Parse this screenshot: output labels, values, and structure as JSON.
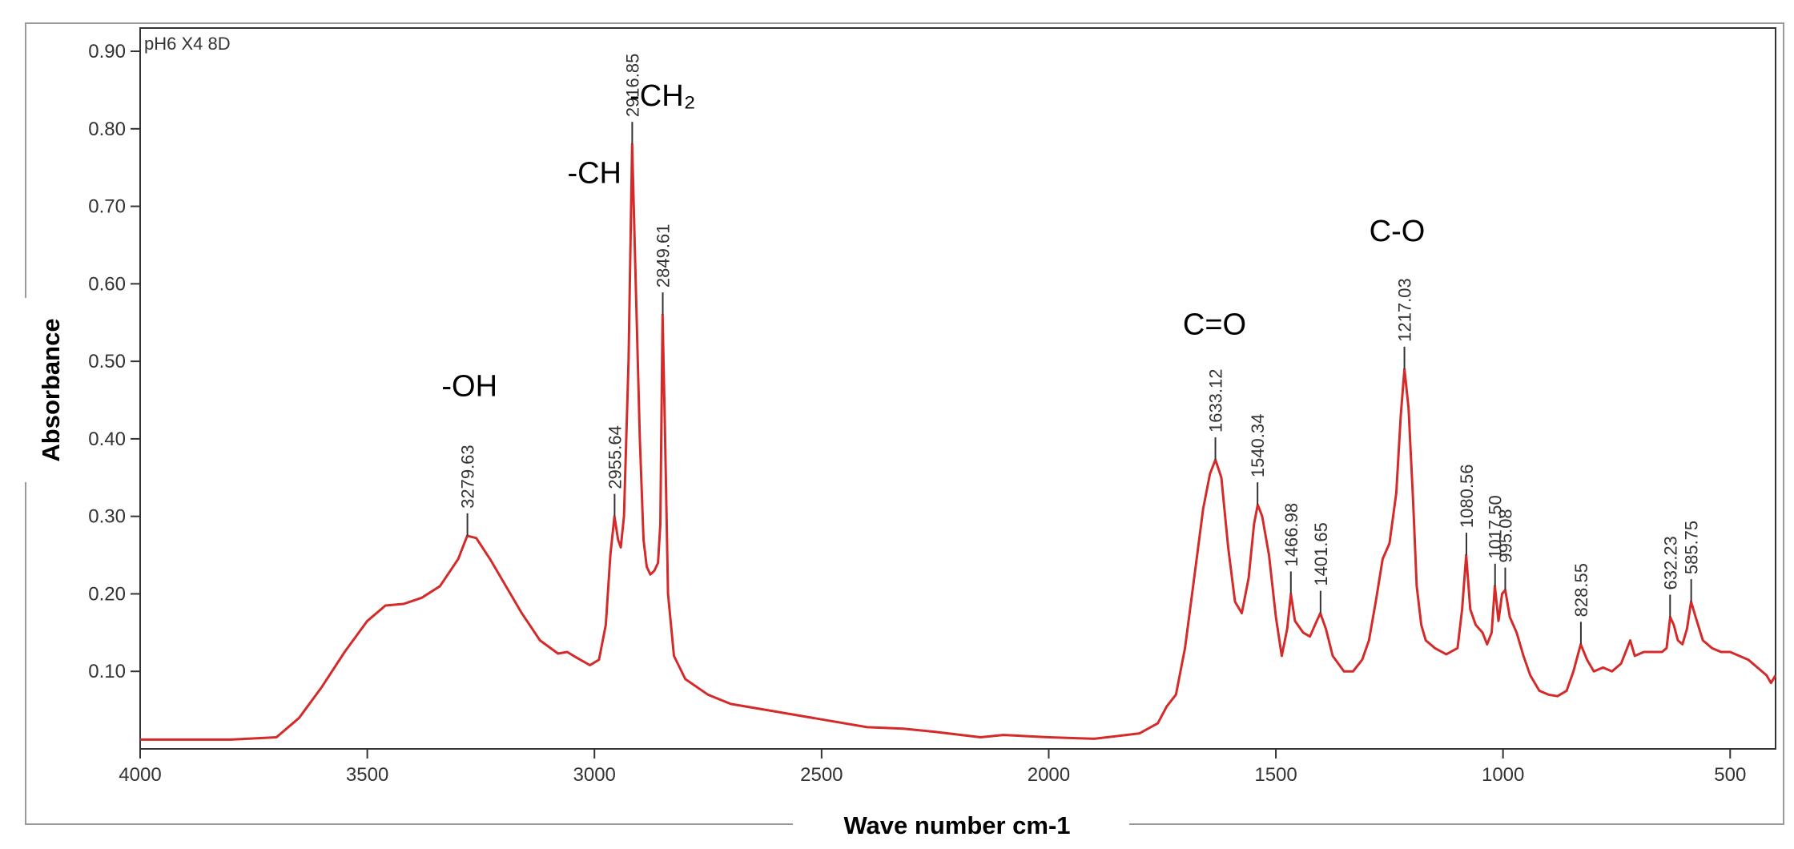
{
  "chart_data": {
    "type": "line",
    "sample_label": "pH6 X4 8D",
    "xlabel": "Wave number cm-1",
    "ylabel": "Absorbance",
    "xlim": [
      4000,
      400
    ],
    "ylim": [
      0,
      0.93
    ],
    "x_ticks": [
      4000,
      3500,
      3000,
      2500,
      2000,
      1500,
      1000,
      500
    ],
    "y_ticks": [
      0.1,
      0.2,
      0.3,
      0.4,
      0.5,
      0.6,
      0.7,
      0.8,
      0.9
    ],
    "y_tick_labels": [
      "0.10",
      "0.20",
      "0.30",
      "0.40",
      "0.50",
      "0.60",
      "0.70",
      "0.80",
      "0.90"
    ],
    "line_color": "#d42a2a",
    "series": [
      {
        "points": [
          [
            4000,
            0.012
          ],
          [
            3800,
            0.012
          ],
          [
            3700,
            0.015
          ],
          [
            3650,
            0.04
          ],
          [
            3600,
            0.08
          ],
          [
            3550,
            0.125
          ],
          [
            3500,
            0.165
          ],
          [
            3460,
            0.185
          ],
          [
            3420,
            0.187
          ],
          [
            3380,
            0.195
          ],
          [
            3340,
            0.21
          ],
          [
            3300,
            0.245
          ],
          [
            3280,
            0.275
          ],
          [
            3260,
            0.272
          ],
          [
            3230,
            0.245
          ],
          [
            3200,
            0.215
          ],
          [
            3160,
            0.175
          ],
          [
            3120,
            0.14
          ],
          [
            3080,
            0.123
          ],
          [
            3060,
            0.125
          ],
          [
            3040,
            0.118
          ],
          [
            3010,
            0.108
          ],
          [
            2990,
            0.115
          ],
          [
            2975,
            0.16
          ],
          [
            2965,
            0.25
          ],
          [
            2956,
            0.3
          ],
          [
            2948,
            0.27
          ],
          [
            2942,
            0.26
          ],
          [
            2935,
            0.3
          ],
          [
            2925,
            0.5
          ],
          [
            2917,
            0.78
          ],
          [
            2910,
            0.62
          ],
          [
            2900,
            0.4
          ],
          [
            2892,
            0.27
          ],
          [
            2885,
            0.235
          ],
          [
            2877,
            0.225
          ],
          [
            2868,
            0.23
          ],
          [
            2860,
            0.24
          ],
          [
            2855,
            0.29
          ],
          [
            2850,
            0.56
          ],
          [
            2845,
            0.42
          ],
          [
            2838,
            0.2
          ],
          [
            2825,
            0.12
          ],
          [
            2800,
            0.09
          ],
          [
            2750,
            0.07
          ],
          [
            2700,
            0.058
          ],
          [
            2600,
            0.048
          ],
          [
            2500,
            0.038
          ],
          [
            2400,
            0.028
          ],
          [
            2320,
            0.026
          ],
          [
            2250,
            0.022
          ],
          [
            2150,
            0.015
          ],
          [
            2100,
            0.018
          ],
          [
            2000,
            0.015
          ],
          [
            1900,
            0.013
          ],
          [
            1800,
            0.02
          ],
          [
            1760,
            0.033
          ],
          [
            1740,
            0.055
          ],
          [
            1720,
            0.07
          ],
          [
            1700,
            0.13
          ],
          [
            1680,
            0.22
          ],
          [
            1660,
            0.31
          ],
          [
            1645,
            0.355
          ],
          [
            1633,
            0.373
          ],
          [
            1620,
            0.35
          ],
          [
            1605,
            0.26
          ],
          [
            1590,
            0.19
          ],
          [
            1575,
            0.175
          ],
          [
            1560,
            0.22
          ],
          [
            1548,
            0.29
          ],
          [
            1540,
            0.315
          ],
          [
            1530,
            0.3
          ],
          [
            1515,
            0.25
          ],
          [
            1500,
            0.17
          ],
          [
            1487,
            0.12
          ],
          [
            1475,
            0.155
          ],
          [
            1467,
            0.2
          ],
          [
            1458,
            0.165
          ],
          [
            1440,
            0.15
          ],
          [
            1425,
            0.145
          ],
          [
            1410,
            0.165
          ],
          [
            1402,
            0.175
          ],
          [
            1390,
            0.155
          ],
          [
            1375,
            0.12
          ],
          [
            1350,
            0.1
          ],
          [
            1330,
            0.1
          ],
          [
            1310,
            0.115
          ],
          [
            1295,
            0.14
          ],
          [
            1280,
            0.19
          ],
          [
            1265,
            0.245
          ],
          [
            1250,
            0.265
          ],
          [
            1235,
            0.33
          ],
          [
            1225,
            0.43
          ],
          [
            1217,
            0.49
          ],
          [
            1208,
            0.44
          ],
          [
            1198,
            0.32
          ],
          [
            1190,
            0.21
          ],
          [
            1180,
            0.16
          ],
          [
            1170,
            0.14
          ],
          [
            1150,
            0.13
          ],
          [
            1125,
            0.122
          ],
          [
            1100,
            0.13
          ],
          [
            1090,
            0.18
          ],
          [
            1081,
            0.25
          ],
          [
            1072,
            0.18
          ],
          [
            1060,
            0.16
          ],
          [
            1045,
            0.15
          ],
          [
            1035,
            0.135
          ],
          [
            1025,
            0.15
          ],
          [
            1018,
            0.21
          ],
          [
            1010,
            0.165
          ],
          [
            1002,
            0.2
          ],
          [
            995,
            0.205
          ],
          [
            985,
            0.17
          ],
          [
            970,
            0.15
          ],
          [
            955,
            0.12
          ],
          [
            940,
            0.095
          ],
          [
            920,
            0.075
          ],
          [
            900,
            0.07
          ],
          [
            880,
            0.068
          ],
          [
            860,
            0.075
          ],
          [
            845,
            0.1
          ],
          [
            829,
            0.135
          ],
          [
            815,
            0.115
          ],
          [
            800,
            0.1
          ],
          [
            780,
            0.105
          ],
          [
            760,
            0.1
          ],
          [
            740,
            0.11
          ],
          [
            720,
            0.14
          ],
          [
            710,
            0.12
          ],
          [
            690,
            0.125
          ],
          [
            670,
            0.125
          ],
          [
            650,
            0.125
          ],
          [
            640,
            0.13
          ],
          [
            632,
            0.17
          ],
          [
            624,
            0.16
          ],
          [
            615,
            0.14
          ],
          [
            605,
            0.135
          ],
          [
            595,
            0.155
          ],
          [
            586,
            0.19
          ],
          [
            576,
            0.17
          ],
          [
            560,
            0.14
          ],
          [
            540,
            0.13
          ],
          [
            520,
            0.125
          ],
          [
            500,
            0.125
          ],
          [
            480,
            0.12
          ],
          [
            460,
            0.115
          ],
          [
            440,
            0.105
          ],
          [
            420,
            0.095
          ],
          [
            410,
            0.085
          ],
          [
            400,
            0.095
          ]
        ]
      }
    ],
    "peak_labels": [
      {
        "x": 3279.63,
        "y": 0.275,
        "label": "3279.63"
      },
      {
        "x": 2955.64,
        "y": 0.3,
        "label": "2955.64"
      },
      {
        "x": 2916.85,
        "y": 0.78,
        "label": "2916.85"
      },
      {
        "x": 2849.61,
        "y": 0.56,
        "label": "2849.61"
      },
      {
        "x": 1633.12,
        "y": 0.373,
        "label": "1633.12"
      },
      {
        "x": 1540.34,
        "y": 0.315,
        "label": "1540.34"
      },
      {
        "x": 1466.98,
        "y": 0.2,
        "label": "1466.98"
      },
      {
        "x": 1401.65,
        "y": 0.175,
        "label": "1401.65"
      },
      {
        "x": 1217.03,
        "y": 0.49,
        "label": "1217.03"
      },
      {
        "x": 1080.56,
        "y": 0.25,
        "label": "1080.56"
      },
      {
        "x": 1017.5,
        "y": 0.21,
        "label": "1017.50"
      },
      {
        "x": 995.08,
        "y": 0.205,
        "label": "995.08"
      },
      {
        "x": 828.55,
        "y": 0.135,
        "label": "828.55"
      },
      {
        "x": 632.23,
        "y": 0.17,
        "label": "632.23"
      },
      {
        "x": 585.75,
        "y": 0.19,
        "label": "585.75"
      }
    ],
    "annotations": [
      {
        "text": "-OH",
        "x": 3275,
        "y": 0.455
      },
      {
        "text": "-CH",
        "x": 3000,
        "y": 0.73
      },
      {
        "text": "-CH₂",
        "x": 2850,
        "y": 0.83
      },
      {
        "text": "C=O",
        "x": 1635,
        "y": 0.535
      },
      {
        "text": "C-O",
        "x": 1233,
        "y": 0.655
      }
    ]
  }
}
